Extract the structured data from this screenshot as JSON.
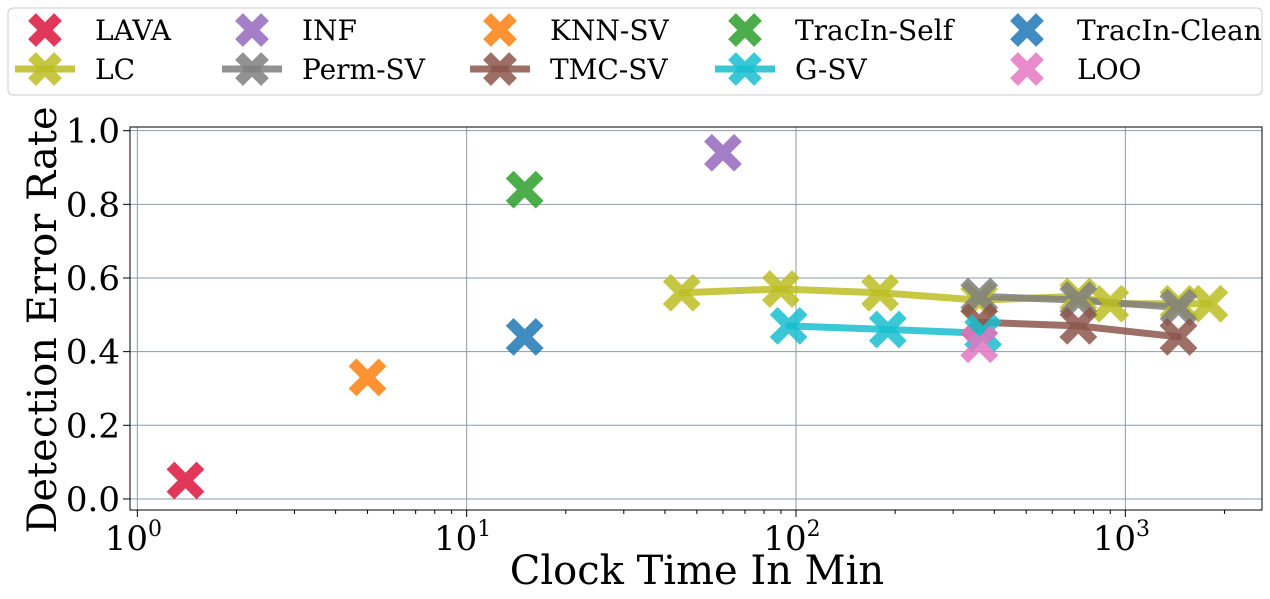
{
  "chart_data": {
    "type": "scatter",
    "xlabel": "Clock Time In Min",
    "ylabel": "Detection Error Rate",
    "x_scale": "log",
    "xlim": [
      0.95,
      2600
    ],
    "ylim": [
      -0.03,
      1.01
    ],
    "x_ticks": [
      {
        "value": 1,
        "base": "10",
        "exp": "0"
      },
      {
        "value": 10,
        "base": "10",
        "exp": "1"
      },
      {
        "value": 100,
        "base": "10",
        "exp": "2"
      },
      {
        "value": 1000,
        "base": "10",
        "exp": "3"
      }
    ],
    "y_ticks": [
      {
        "value": 0.0,
        "label": "0.0"
      },
      {
        "value": 0.2,
        "label": "0.2"
      },
      {
        "value": 0.4,
        "label": "0.4"
      },
      {
        "value": 0.6,
        "label": "0.6"
      },
      {
        "value": 0.8,
        "label": "0.8"
      },
      {
        "value": 1.0,
        "label": "1.0"
      }
    ],
    "grid": true,
    "legend_position": "top",
    "series": [
      {
        "name": "LAVA",
        "color": "#dc143c",
        "line": false,
        "points": [
          [
            1.4,
            0.05
          ]
        ]
      },
      {
        "name": "LC",
        "color": "#bcbd22",
        "line": true,
        "points": [
          [
            45,
            0.56
          ],
          [
            90,
            0.57
          ],
          [
            180,
            0.56
          ],
          [
            360,
            0.54
          ],
          [
            720,
            0.55
          ],
          [
            900,
            0.53
          ],
          [
            1450,
            0.53
          ],
          [
            1800,
            0.53
          ]
        ]
      },
      {
        "name": "INF",
        "color": "#9467bd",
        "line": false,
        "points": [
          [
            60,
            0.94
          ]
        ]
      },
      {
        "name": "Perm-SV",
        "color": "#7f7f7f",
        "line": true,
        "points": [
          [
            360,
            0.55
          ],
          [
            720,
            0.54
          ],
          [
            1450,
            0.52
          ]
        ]
      },
      {
        "name": "KNN-SV",
        "color": "#ff7f0e",
        "line": false,
        "points": [
          [
            5,
            0.33
          ]
        ]
      },
      {
        "name": "TMC-SV",
        "color": "#8c564b",
        "line": true,
        "points": [
          [
            360,
            0.48
          ],
          [
            720,
            0.47
          ],
          [
            1450,
            0.44
          ]
        ]
      },
      {
        "name": "TracIn-Self",
        "color": "#2ca02c",
        "line": false,
        "points": [
          [
            15,
            0.84
          ]
        ]
      },
      {
        "name": "G-SV",
        "color": "#17becf",
        "line": true,
        "points": [
          [
            95,
            0.47
          ],
          [
            190,
            0.46
          ],
          [
            370,
            0.45
          ]
        ]
      },
      {
        "name": "TracIn-Clean",
        "color": "#1f77b4",
        "line": false,
        "points": [
          [
            15,
            0.44
          ]
        ]
      },
      {
        "name": "LOO",
        "color": "#e377c2",
        "line": false,
        "points": [
          [
            360,
            0.42
          ]
        ]
      }
    ]
  }
}
